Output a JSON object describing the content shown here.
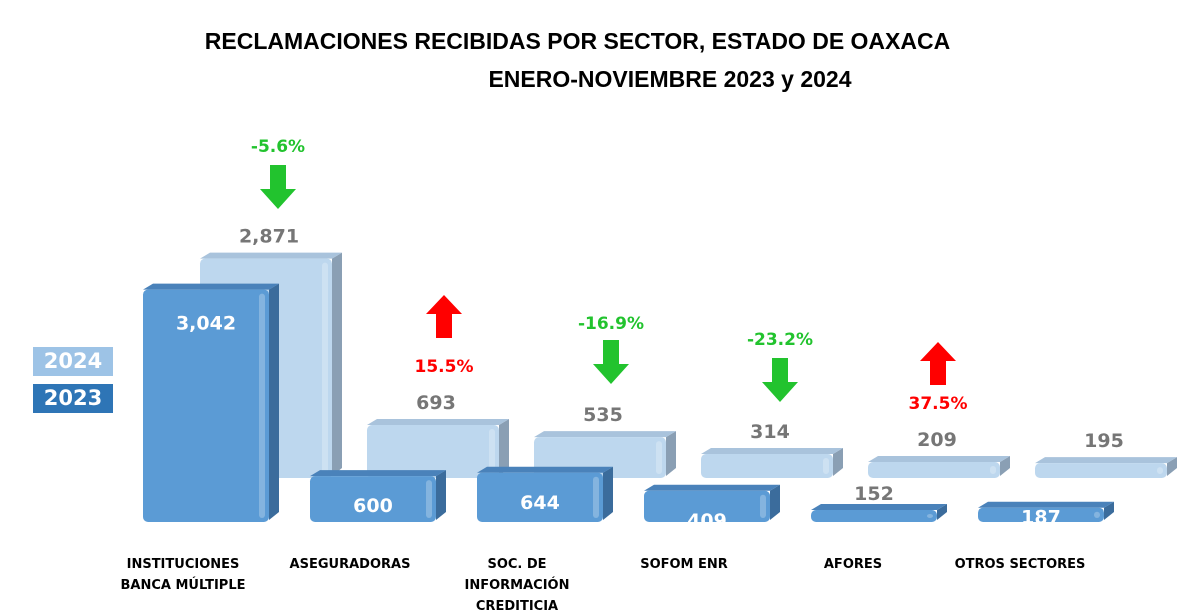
{
  "chart_data": {
    "type": "bar",
    "title": "RECLAMACIONES RECIBIDAS POR SECTOR, ESTADO DE OAXACA",
    "subtitle": "ENERO-NOVIEMBRE 2023 y 2024",
    "categories": [
      [
        "INSTITUCIONES",
        "BANCA MÚLTIPLE"
      ],
      [
        "ASEGURADORAS"
      ],
      [
        "SOC. DE",
        "INFORMACIÓN",
        "CREDITICIA"
      ],
      [
        "SOFOM ENR"
      ],
      [
        "AFORES"
      ],
      [
        "OTROS SECTORES"
      ]
    ],
    "series": [
      {
        "name": "2023",
        "color": "#5b9bd5",
        "values": [
          3042,
          600,
          644,
          409,
          152,
          187
        ],
        "labels": [
          "3,042",
          "600",
          "644",
          "409",
          "152",
          "187"
        ]
      },
      {
        "name": "2024",
        "color": "#bdd7ee",
        "values": [
          2871,
          693,
          535,
          314,
          209,
          195
        ],
        "labels": [
          "2,871",
          "693",
          "535",
          "314",
          "209",
          "195"
        ]
      }
    ],
    "changes": [
      {
        "label": "-5.6%",
        "direction": "down"
      },
      {
        "label": "15.5%",
        "direction": "up"
      },
      {
        "label": "-16.9%",
        "direction": "down"
      },
      {
        "label": "-23.2%",
        "direction": "down"
      },
      {
        "label": "37.5%",
        "direction": "up"
      },
      null
    ],
    "colors": {
      "up": "#ff0000",
      "down": "#22c32e",
      "legend2024": "#9dc3e6",
      "legend2023": "#2e75b6"
    },
    "legend_position": "left"
  }
}
